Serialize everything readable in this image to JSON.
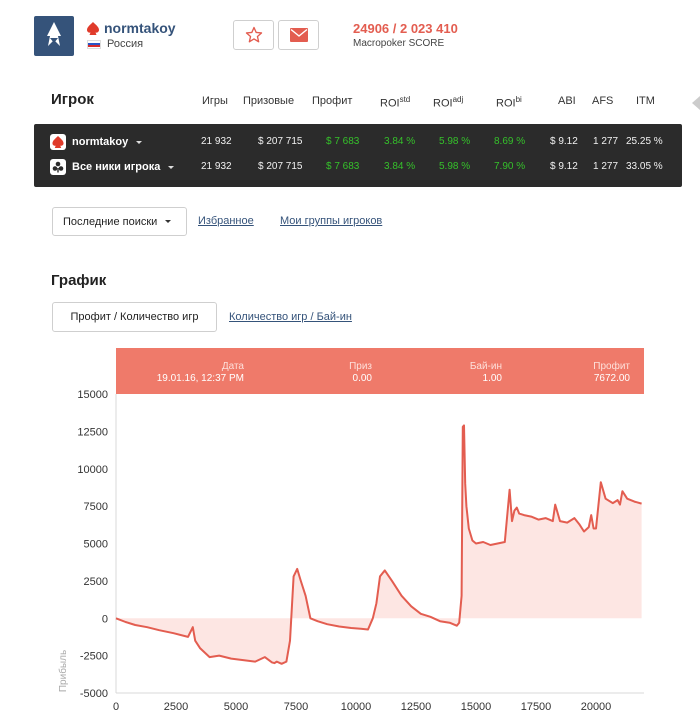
{
  "header": {
    "username": "normtakoy",
    "country": "Россия",
    "score_value": "24906 / 2 023 410",
    "score_label": "Macropoker SCORE",
    "favorite_icon": "star-icon",
    "message_icon": "envelope-icon",
    "colors": {
      "accent": "#e35d50",
      "brand": "#35537a"
    }
  },
  "player": {
    "title": "Игрок",
    "columns": [
      {
        "key": "games",
        "label": "Игры",
        "sup": ""
      },
      {
        "key": "prize",
        "label": "Призовые",
        "sup": ""
      },
      {
        "key": "profit",
        "label": "Профит",
        "sup": ""
      },
      {
        "key": "roi_std",
        "label": "ROI",
        "sup": "std"
      },
      {
        "key": "roi_adj",
        "label": "ROI",
        "sup": "adj"
      },
      {
        "key": "roi_bi",
        "label": "ROI",
        "sup": "bi"
      },
      {
        "key": "abi",
        "label": "ABI",
        "sup": ""
      },
      {
        "key": "afs",
        "label": "AFS",
        "sup": ""
      },
      {
        "key": "itm",
        "label": "ITM",
        "sup": ""
      }
    ],
    "rows": [
      {
        "name": "normtakoy",
        "icon": "pokerstars-icon",
        "games": "21 932",
        "prize": "$ 207 715",
        "profit": "$ 7 683",
        "roi_std": "3.84 %",
        "roi_adj": "5.98 %",
        "roi_bi": "8.69 %",
        "abi": "$ 9.12",
        "afs": "1 277",
        "itm": "25.25 %"
      },
      {
        "name": "Все ники игрока",
        "icon": "all-nicks-icon",
        "games": "21 932",
        "prize": "$ 207 715",
        "profit": "$ 7 683",
        "roi_std": "3.84 %",
        "roi_adj": "5.98 %",
        "roi_bi": "7.90 %",
        "abi": "$ 9.12",
        "afs": "1 277",
        "itm": "33.05 %"
      }
    ]
  },
  "filters": {
    "recent_label": "Последние поиски",
    "favorites_label": "Избранное",
    "groups_label": "Мои группы игроков"
  },
  "chart_section": {
    "title": "График",
    "tab_active": "Профит / Количество игр",
    "tab_other": "Количество игр / Бай-ин"
  },
  "tooltip": {
    "date_label": "Дата",
    "date_value": "19.01.16, 12:37 PM",
    "prize_label": "Приз",
    "prize_value": "0.00",
    "buyin_label": "Бай-ин",
    "buyin_value": "1.00",
    "profit_label": "Профит",
    "profit_value": "7672.00"
  },
  "chart_data": {
    "type": "line",
    "ylabel": "Прибыль",
    "xlim": [
      0,
      22000
    ],
    "ylim": [
      -5000,
      15000
    ],
    "x_ticks": [
      0,
      2500,
      5000,
      7500,
      10000,
      12500,
      15000,
      17500,
      20000
    ],
    "y_ticks": [
      15000,
      12500,
      10000,
      7500,
      5000,
      2500,
      0,
      -2500,
      -5000
    ],
    "line_color": "#e35d50",
    "fill_color": "#fde6e3",
    "series": [
      {
        "x": [
          0,
          400,
          800,
          1300,
          1800,
          2400,
          3000,
          3200,
          3300,
          3500,
          3700,
          3900,
          4300,
          4800,
          5300,
          5800,
          6200,
          6500,
          6600,
          6700,
          6900,
          7100,
          7250,
          7400,
          7550,
          7700,
          7900,
          8100,
          8400,
          8800,
          9300,
          9800,
          10200,
          10500,
          10700,
          10850,
          11000,
          11200,
          11500,
          11900,
          12300,
          12700,
          13100,
          13500,
          13900,
          14200,
          14300,
          14400,
          14450,
          14500,
          14550,
          14600,
          14700,
          14850,
          15000,
          15300,
          15600,
          15900,
          16200,
          16400,
          16500,
          16600,
          16700,
          16800,
          17000,
          17300,
          17600,
          17900,
          18200,
          18300,
          18500,
          18800,
          19100,
          19300,
          19500,
          19700,
          19800,
          19900,
          20000,
          20200,
          20400,
          20700,
          20900,
          21000,
          21100,
          21300,
          21600,
          21900
        ],
        "values": [
          0,
          -250,
          -450,
          -600,
          -800,
          -1000,
          -1250,
          -600,
          -1500,
          -2000,
          -2300,
          -2600,
          -2500,
          -2700,
          -2800,
          -2900,
          -2600,
          -2950,
          -3000,
          -2900,
          -3050,
          -2900,
          -1500,
          2800,
          3300,
          2500,
          1500,
          0,
          -200,
          -400,
          -550,
          -650,
          -700,
          -750,
          0,
          1000,
          2800,
          3200,
          2500,
          1500,
          800,
          300,
          100,
          -200,
          -300,
          -500,
          -300,
          1500,
          12800,
          12900,
          9000,
          7500,
          6000,
          5200,
          5000,
          5100,
          4900,
          5000,
          5100,
          8600,
          6500,
          7200,
          7400,
          7000,
          6900,
          6800,
          6600,
          6700,
          6500,
          7600,
          6500,
          6400,
          6700,
          6300,
          5800,
          6100,
          6900,
          6000,
          6000,
          9100,
          8000,
          7700,
          7900,
          7600,
          8500,
          8000,
          7800,
          7672
        ]
      }
    ]
  }
}
